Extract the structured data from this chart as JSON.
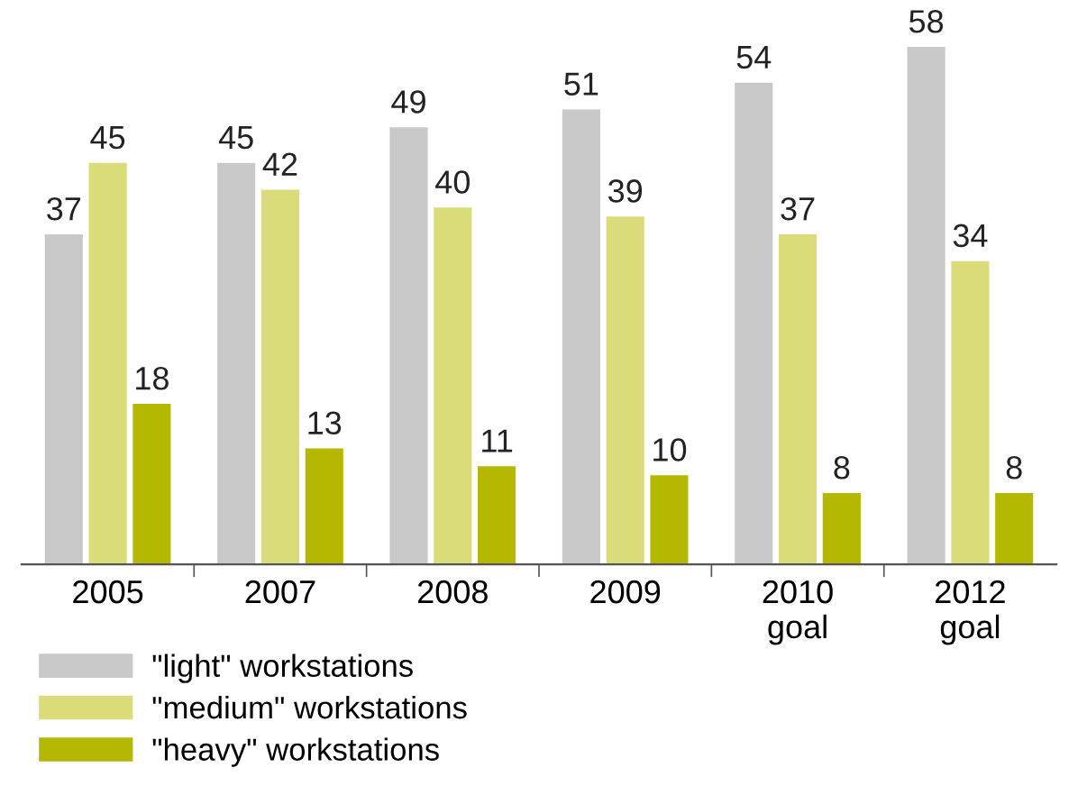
{
  "chart_data": {
    "type": "bar",
    "categories": [
      "2005",
      "2007",
      "2008",
      "2009",
      "2010\ngoal",
      "2012\ngoal"
    ],
    "series": [
      {
        "name": "\"light\" workstations",
        "color": "#c8c8c8",
        "values": [
          37,
          45,
          49,
          51,
          54,
          58
        ]
      },
      {
        "name": "\"medium\" workstations",
        "color": "#d9dc79",
        "values": [
          45,
          42,
          40,
          39,
          37,
          34
        ]
      },
      {
        "name": "\"heavy\" workstations",
        "color": "#b5b800",
        "values": [
          18,
          13,
          11,
          10,
          8,
          8
        ]
      }
    ],
    "data_labels": true,
    "legend": "bottom",
    "tick_labels": "x",
    "grid": false
  }
}
